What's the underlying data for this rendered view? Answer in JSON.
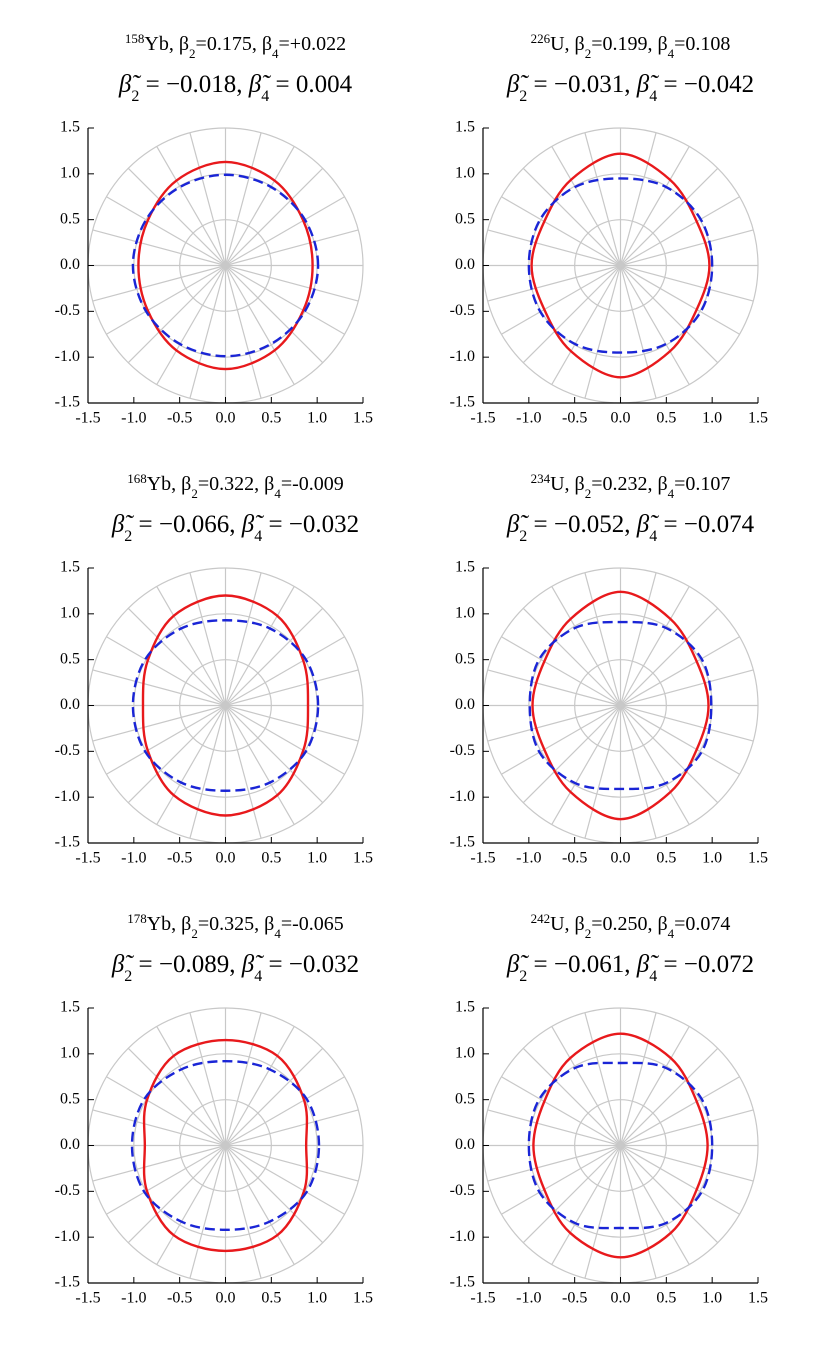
{
  "chart_data": [
    {
      "type": "polar",
      "title_parts": [
        "158",
        "Yb, β",
        "2",
        "=0.175, β",
        "4",
        "=+0.022"
      ],
      "subtitle_parts": [
        "β̃",
        "2",
        " = −0.018, ",
        "β̃",
        "4",
        " = 0.004"
      ],
      "theta": [
        0,
        30,
        60,
        90,
        120,
        150,
        180,
        210,
        240,
        270,
        300,
        330
      ],
      "series": [
        {
          "color": "#e8191c",
          "values": [
            0.95,
            0.98,
            1.07,
            1.13,
            1.07,
            0.98,
            0.95,
            0.98,
            1.07,
            1.13,
            1.07,
            0.98
          ]
        },
        {
          "color": "#1a25d6",
          "values": [
            1.01,
            1.0,
            0.99,
            0.99,
            0.99,
            1.0,
            1.01,
            1.0,
            0.99,
            0.99,
            0.99,
            1.0
          ]
        }
      ],
      "xlim": [
        -1.5,
        1.5
      ],
      "ylim": [
        -1.5,
        1.5
      ],
      "xticks": [
        -1.5,
        {
          "value": -1,
          "label": "-1.0"
        },
        -0.5,
        {
          "value": 0,
          "label": "0.0"
        },
        0.5,
        {
          "value": 1,
          "label": "1.0"
        },
        1.5
      ],
      "yticks": [
        -1.5,
        {
          "value": -1,
          "label": "-1.0"
        },
        -0.5,
        {
          "value": 0,
          "label": "0.0"
        },
        0.5,
        {
          "value": 1,
          "label": "1.0"
        },
        1.5
      ],
      "polar_grid_r": [
        0.5,
        1,
        1.5
      ],
      "spoke_step": 15
    },
    {
      "type": "polar",
      "title_parts": [
        "226",
        "U, β",
        "2",
        "=0.199, β",
        "4",
        "=0.108"
      ],
      "subtitle_parts": [
        "β̃",
        "2",
        " = −0.031, ",
        "β̃",
        "4",
        " = −0.042"
      ],
      "theta": [
        0,
        30,
        60,
        90,
        120,
        150,
        180,
        210,
        240,
        270,
        300,
        330
      ],
      "series": [
        {
          "color": "#e8191c",
          "values": [
            0.97,
            0.96,
            1.08,
            1.22,
            1.08,
            0.96,
            0.97,
            0.96,
            1.08,
            1.22,
            1.08,
            0.96
          ]
        },
        {
          "color": "#1a25d6",
          "values": [
            1.0,
            1.01,
            0.99,
            0.95,
            0.99,
            1.01,
            1.0,
            1.01,
            0.99,
            0.95,
            0.99,
            1.01
          ]
        }
      ],
      "xlim": [
        -1.5,
        1.5
      ],
      "ylim": [
        -1.5,
        1.5
      ],
      "xticks": [
        -1.5,
        {
          "value": -1,
          "label": "-1.0"
        },
        -0.5,
        {
          "value": 0,
          "label": "0.0"
        },
        0.5,
        {
          "value": 1,
          "label": "1.0"
        },
        1.5
      ],
      "yticks": [
        -1.5,
        {
          "value": -1,
          "label": "-1.0"
        },
        -0.5,
        {
          "value": 0,
          "label": "0.0"
        },
        0.5,
        {
          "value": 1,
          "label": "1.0"
        },
        1.5
      ],
      "polar_grid_r": [
        0.5,
        1,
        1.5
      ],
      "spoke_step": 15
    },
    {
      "type": "polar",
      "title_parts": [
        "168",
        "Yb, β",
        "2",
        "=0.322, β",
        "4",
        "=-0.009"
      ],
      "subtitle_parts": [
        "β̃",
        "2",
        " = −0.066, ",
        "β̃",
        "4",
        " = −0.032"
      ],
      "theta": [
        0,
        30,
        60,
        90,
        120,
        150,
        180,
        210,
        240,
        270,
        300,
        330
      ],
      "series": [
        {
          "color": "#e8191c",
          "values": [
            0.9,
            0.98,
            1.13,
            1.2,
            1.13,
            0.98,
            0.9,
            0.98,
            1.13,
            1.2,
            1.13,
            0.98
          ]
        },
        {
          "color": "#1a25d6",
          "values": [
            1.01,
            1.01,
            0.97,
            0.93,
            0.97,
            1.01,
            1.01,
            1.01,
            0.97,
            0.93,
            0.97,
            1.01
          ]
        }
      ],
      "xlim": [
        -1.5,
        1.5
      ],
      "ylim": [
        -1.5,
        1.5
      ],
      "xticks": [
        -1.5,
        {
          "value": -1,
          "label": "-1.0"
        },
        -0.5,
        {
          "value": 0,
          "label": "0.0"
        },
        0.5,
        {
          "value": 1,
          "label": "1.0"
        },
        1.5
      ],
      "yticks": [
        -1.5,
        {
          "value": -1,
          "label": "-1.0"
        },
        -0.5,
        {
          "value": 0,
          "label": "0.0"
        },
        0.5,
        {
          "value": 1,
          "label": "1.0"
        },
        1.5
      ],
      "polar_grid_r": [
        0.5,
        1,
        1.5
      ],
      "spoke_step": 15
    },
    {
      "type": "polar",
      "title_parts": [
        "234",
        "U, β",
        "2",
        "=0.232, β",
        "4",
        "=0.107"
      ],
      "subtitle_parts": [
        "β̃",
        "2",
        " = −0.052, ",
        "β̃",
        "4",
        " = −0.074"
      ],
      "theta": [
        0,
        30,
        60,
        90,
        120,
        150,
        180,
        210,
        240,
        270,
        300,
        330
      ],
      "series": [
        {
          "color": "#e8191c",
          "values": [
            0.96,
            0.96,
            1.09,
            1.24,
            1.09,
            0.96,
            0.96,
            0.96,
            1.09,
            1.24,
            1.09,
            0.96
          ]
        },
        {
          "color": "#1a25d6",
          "values": [
            0.99,
            1.02,
            0.98,
            0.91,
            0.98,
            1.02,
            0.99,
            1.02,
            0.98,
            0.91,
            0.98,
            1.02
          ]
        }
      ],
      "xlim": [
        -1.5,
        1.5
      ],
      "ylim": [
        -1.5,
        1.5
      ],
      "xticks": [
        -1.5,
        {
          "value": -1,
          "label": "-1.0"
        },
        -0.5,
        {
          "value": 0,
          "label": "0.0"
        },
        0.5,
        {
          "value": 1,
          "label": "1.0"
        },
        1.5
      ],
      "yticks": [
        -1.5,
        {
          "value": -1,
          "label": "-1.0"
        },
        -0.5,
        {
          "value": 0,
          "label": "0.0"
        },
        0.5,
        {
          "value": 1,
          "label": "1.0"
        },
        1.5
      ],
      "polar_grid_r": [
        0.5,
        1,
        1.5
      ],
      "spoke_step": 15
    },
    {
      "type": "polar",
      "title_parts": [
        "178",
        "Yb, β",
        "2",
        "=0.325, β",
        "4",
        "=-0.065"
      ],
      "subtitle_parts": [
        "β̃",
        "2",
        " = −0.089, ",
        "β̃",
        "4",
        " = −0.032"
      ],
      "theta": [
        0,
        30,
        60,
        90,
        120,
        150,
        180,
        210,
        240,
        270,
        300,
        330
      ],
      "series": [
        {
          "color": "#e8191c",
          "values": [
            0.88,
            0.99,
            1.13,
            1.15,
            1.13,
            0.99,
            0.88,
            0.99,
            1.13,
            1.15,
            1.13,
            0.99
          ]
        },
        {
          "color": "#1a25d6",
          "values": [
            1.02,
            1.02,
            0.96,
            0.92,
            0.96,
            1.02,
            1.02,
            1.02,
            0.96,
            0.92,
            0.96,
            1.02
          ]
        }
      ],
      "xlim": [
        -1.5,
        1.5
      ],
      "ylim": [
        -1.5,
        1.5
      ],
      "xticks": [
        -1.5,
        {
          "value": -1,
          "label": "-1.0"
        },
        -0.5,
        {
          "value": 0,
          "label": "0.0"
        },
        0.5,
        {
          "value": 1,
          "label": "1.0"
        },
        1.5
      ],
      "yticks": [
        -1.5,
        {
          "value": -1,
          "label": "-1.0"
        },
        -0.5,
        {
          "value": 0,
          "label": "0.0"
        },
        0.5,
        {
          "value": 1,
          "label": "1.0"
        },
        1.5
      ],
      "polar_grid_r": [
        0.5,
        1,
        1.5
      ],
      "spoke_step": 15
    },
    {
      "type": "polar",
      "title_parts": [
        "242",
        "U, β",
        "2",
        "=0.250, β",
        "4",
        "=0.074"
      ],
      "subtitle_parts": [
        "β̃",
        "2",
        " = −0.061, ",
        "β̃",
        "4",
        " = −0.072"
      ],
      "theta": [
        0,
        30,
        60,
        90,
        120,
        150,
        180,
        210,
        240,
        270,
        300,
        330
      ],
      "series": [
        {
          "color": "#e8191c",
          "values": [
            0.95,
            0.96,
            1.1,
            1.22,
            1.1,
            0.96,
            0.95,
            0.96,
            1.1,
            1.22,
            1.1,
            0.96
          ]
        },
        {
          "color": "#1a25d6",
          "values": [
            1.0,
            1.02,
            0.98,
            0.9,
            0.98,
            1.02,
            1.0,
            1.02,
            0.98,
            0.9,
            0.98,
            1.02
          ]
        }
      ],
      "xlim": [
        -1.5,
        1.5
      ],
      "ylim": [
        -1.5,
        1.5
      ],
      "xticks": [
        -1.5,
        {
          "value": -1,
          "label": "-1.0"
        },
        -0.5,
        {
          "value": 0,
          "label": "0.0"
        },
        0.5,
        {
          "value": 1,
          "label": "1.0"
        },
        1.5
      ],
      "yticks": [
        -1.5,
        {
          "value": -1,
          "label": "-1.0"
        },
        -0.5,
        {
          "value": 0,
          "label": "0.0"
        },
        0.5,
        {
          "value": 1,
          "label": "1.0"
        },
        1.5
      ],
      "polar_grid_r": [
        0.5,
        1,
        1.5
      ],
      "spoke_step": 15
    }
  ]
}
